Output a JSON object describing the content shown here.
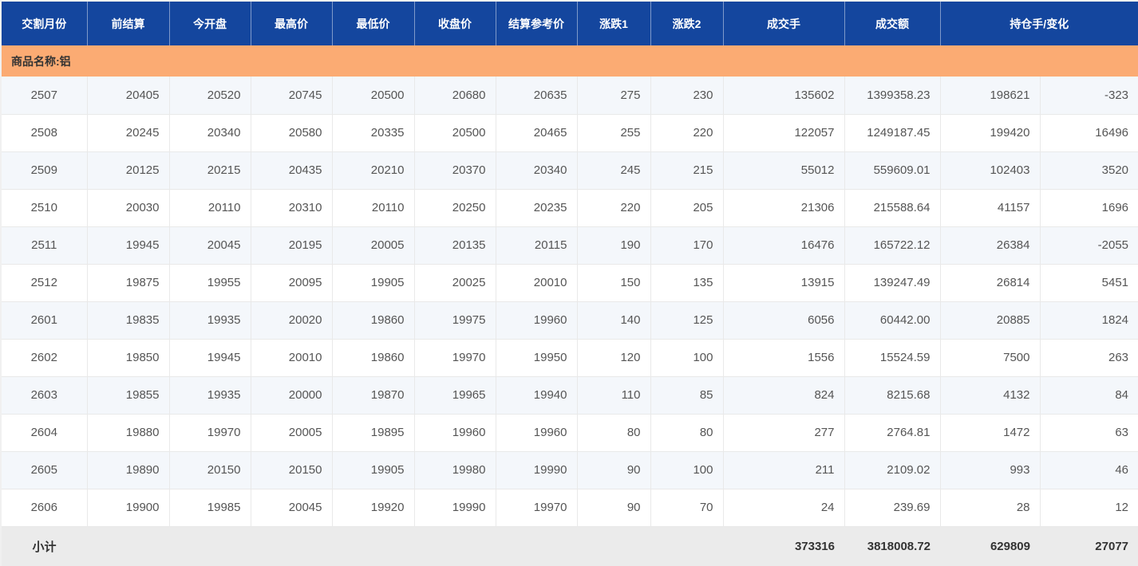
{
  "theme": {
    "header_bg": "#14469e",
    "group_bg": "#fbab73",
    "stripe_bg": "#f4f7fb",
    "row_bg": "#ffffff",
    "subtotal_bg": "#ebebeb",
    "data_text": "#555555",
    "bold_text": "#333333",
    "cell_border": "#e9e9e9",
    "header_text": "#ffffff"
  },
  "table": {
    "columns": [
      {
        "label": "交割月份"
      },
      {
        "label": "前结算"
      },
      {
        "label": "今开盘"
      },
      {
        "label": "最高价"
      },
      {
        "label": "最低价"
      },
      {
        "label": "收盘价"
      },
      {
        "label": "结算参考价"
      },
      {
        "label": "涨跌1"
      },
      {
        "label": "涨跌2"
      },
      {
        "label": "成交手"
      },
      {
        "label": "成交额"
      },
      {
        "label": "持仓手/变化"
      }
    ],
    "group_row": {
      "label": "商品名称:铝"
    },
    "rows": [
      [
        "2507",
        "20405",
        "20520",
        "20745",
        "20500",
        "20680",
        "20635",
        "275",
        "230",
        "135602",
        "1399358.23",
        "198621",
        "-323"
      ],
      [
        "2508",
        "20245",
        "20340",
        "20580",
        "20335",
        "20500",
        "20465",
        "255",
        "220",
        "122057",
        "1249187.45",
        "199420",
        "16496"
      ],
      [
        "2509",
        "20125",
        "20215",
        "20435",
        "20210",
        "20370",
        "20340",
        "245",
        "215",
        "55012",
        "559609.01",
        "102403",
        "3520"
      ],
      [
        "2510",
        "20030",
        "20110",
        "20310",
        "20110",
        "20250",
        "20235",
        "220",
        "205",
        "21306",
        "215588.64",
        "41157",
        "1696"
      ],
      [
        "2511",
        "19945",
        "20045",
        "20195",
        "20005",
        "20135",
        "20115",
        "190",
        "170",
        "16476",
        "165722.12",
        "26384",
        "-2055"
      ],
      [
        "2512",
        "19875",
        "19955",
        "20095",
        "19905",
        "20025",
        "20010",
        "150",
        "135",
        "13915",
        "139247.49",
        "26814",
        "5451"
      ],
      [
        "2601",
        "19835",
        "19935",
        "20020",
        "19860",
        "19975",
        "19960",
        "140",
        "125",
        "6056",
        "60442.00",
        "20885",
        "1824"
      ],
      [
        "2602",
        "19850",
        "19945",
        "20010",
        "19860",
        "19970",
        "19950",
        "120",
        "100",
        "1556",
        "15524.59",
        "7500",
        "263"
      ],
      [
        "2603",
        "19855",
        "19935",
        "20000",
        "19870",
        "19965",
        "19940",
        "110",
        "85",
        "824",
        "8215.68",
        "4132",
        "84"
      ],
      [
        "2604",
        "19880",
        "19970",
        "20005",
        "19895",
        "19960",
        "19960",
        "80",
        "80",
        "277",
        "2764.81",
        "1472",
        "63"
      ],
      [
        "2605",
        "19890",
        "20150",
        "20150",
        "19905",
        "19980",
        "19990",
        "90",
        "100",
        "211",
        "2109.02",
        "993",
        "46"
      ],
      [
        "2606",
        "19900",
        "19985",
        "20045",
        "19920",
        "19990",
        "19970",
        "90",
        "70",
        "24",
        "239.69",
        "28",
        "12"
      ]
    ],
    "subtotal": {
      "label": "小计",
      "volume": "373316",
      "turnover": "3818008.72",
      "open_interest": "629809",
      "change": "27077"
    }
  }
}
